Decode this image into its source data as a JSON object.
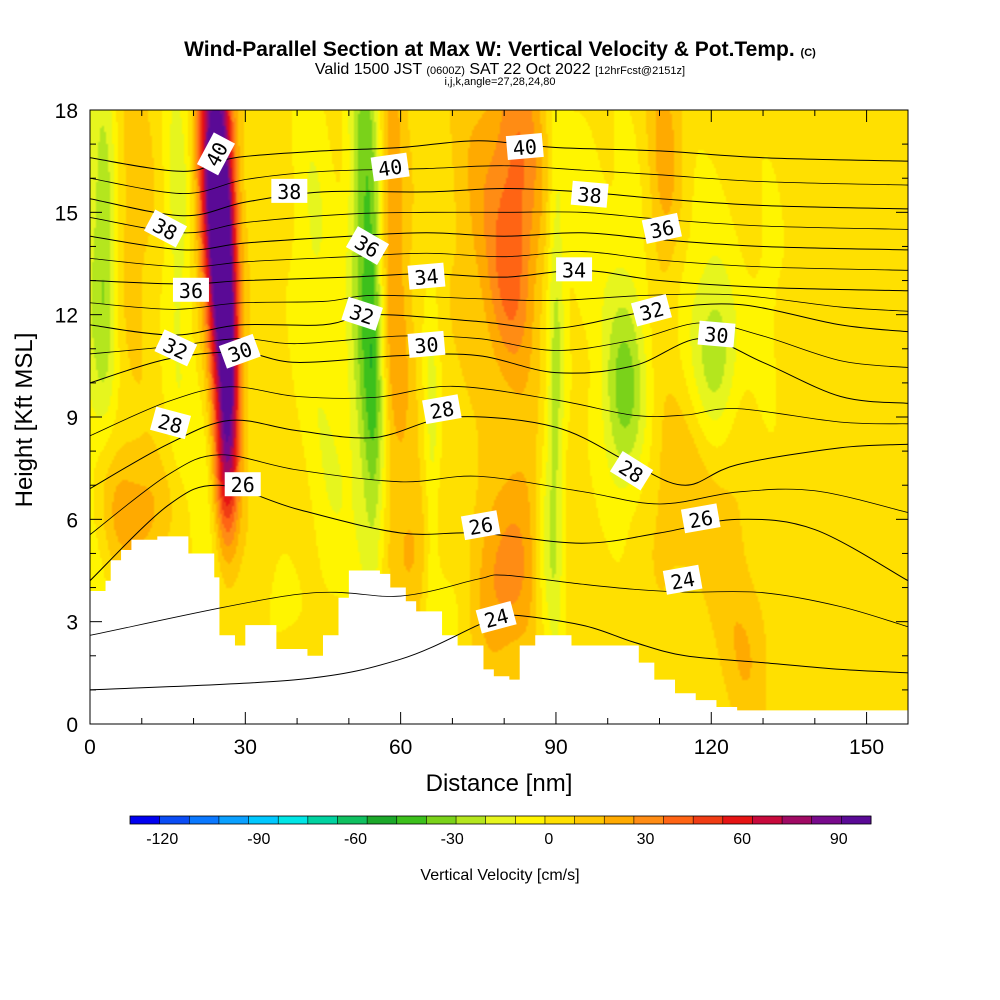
{
  "header": {
    "title": "Wind-Parallel Section at Max W: Vertical Velocity & Pot.Temp.",
    "title_tag": "(C)",
    "valid_a": "Valid 1500 JST",
    "valid_b": "(0600Z)",
    "valid_c": "SAT 22 Oct 2022",
    "valid_d": "[12hrFcst@2151z]",
    "meta": "i,j,k,angle=27,28,24,80"
  },
  "chart_data": {
    "type": "heatmap",
    "xlabel": "Distance [nm]",
    "ylabel": "Height [Kft MSL]",
    "xlim": [
      0,
      158
    ],
    "ylim": [
      0,
      18
    ],
    "x_ticks": [
      0,
      30,
      60,
      90,
      120,
      150
    ],
    "y_ticks": [
      0,
      3,
      6,
      9,
      12,
      15,
      18
    ],
    "colorbar": {
      "label": "Vertical Velocity [cm/s]",
      "ticks": [
        -120,
        -90,
        -60,
        -30,
        0,
        30,
        60,
        90
      ],
      "range": [
        -130,
        100
      ],
      "colors": [
        "#0000f0",
        "#0a4cf5",
        "#0a78ff",
        "#0aa0ff",
        "#00c8ff",
        "#00e6e6",
        "#00d2a0",
        "#10c060",
        "#1ca82a",
        "#3cc01c",
        "#7ad21a",
        "#b4e61e",
        "#e6f51e",
        "#fff500",
        "#ffe000",
        "#ffc800",
        "#ffaa00",
        "#ff8c14",
        "#ff6414",
        "#f03c14",
        "#e61414",
        "#c80a3c",
        "#a00a64",
        "#780a8c",
        "#5a0a96"
      ]
    },
    "terrain_kft": [
      [
        0,
        3.9
      ],
      [
        3,
        4.2
      ],
      [
        4,
        4.8
      ],
      [
        6,
        5.1
      ],
      [
        8,
        5.4
      ],
      [
        13,
        5.5
      ],
      [
        19,
        5.0
      ],
      [
        24,
        4.3
      ],
      [
        25,
        2.6
      ],
      [
        28,
        2.3
      ],
      [
        30,
        2.9
      ],
      [
        36,
        2.2
      ],
      [
        42,
        2.0
      ],
      [
        45,
        2.6
      ],
      [
        48,
        3.7
      ],
      [
        50,
        4.5
      ],
      [
        56,
        4.4
      ],
      [
        58,
        4.0
      ],
      [
        61,
        3.6
      ],
      [
        63,
        3.3
      ],
      [
        68,
        2.6
      ],
      [
        71,
        2.3
      ],
      [
        76,
        1.6
      ],
      [
        78,
        1.4
      ],
      [
        81,
        1.3
      ],
      [
        83,
        2.3
      ],
      [
        86,
        2.6
      ],
      [
        93,
        2.3
      ],
      [
        102,
        2.3
      ],
      [
        106,
        1.8
      ],
      [
        109,
        1.3
      ],
      [
        113,
        0.9
      ],
      [
        117,
        0.7
      ],
      [
        121,
        0.5
      ],
      [
        125,
        0.4
      ],
      [
        150,
        0.4
      ],
      [
        158,
        0.6
      ]
    ],
    "isentropes": [
      {
        "label": "24",
        "points": [
          [
            0,
            1.0
          ],
          [
            40,
            1.3
          ],
          [
            60,
            1.9
          ],
          [
            75,
            2.9
          ],
          [
            80,
            3.2
          ],
          [
            95,
            2.9
          ],
          [
            105,
            2.4
          ],
          [
            115,
            2.0
          ],
          [
            130,
            1.8
          ],
          [
            145,
            1.6
          ],
          [
            158,
            1.5
          ]
        ]
      },
      {
        "label": "26",
        "points": [
          [
            0,
            4.2
          ],
          [
            15,
            6.4
          ],
          [
            25,
            7.0
          ],
          [
            40,
            6.3
          ],
          [
            60,
            5.6
          ],
          [
            75,
            5.6
          ],
          [
            95,
            5.3
          ],
          [
            110,
            5.6
          ],
          [
            125,
            6.0
          ],
          [
            140,
            5.7
          ],
          [
            158,
            4.2
          ]
        ]
      },
      {
        "label": "28",
        "points": [
          [
            0,
            6.9
          ],
          [
            15,
            8.2
          ],
          [
            27,
            8.9
          ],
          [
            40,
            8.6
          ],
          [
            55,
            8.4
          ],
          [
            70,
            9.0
          ],
          [
            90,
            8.7
          ],
          [
            105,
            7.6
          ],
          [
            115,
            7.0
          ],
          [
            125,
            7.6
          ],
          [
            145,
            8.1
          ],
          [
            158,
            8.2
          ]
        ]
      },
      {
        "label": "30",
        "points": [
          [
            0,
            10.0
          ],
          [
            15,
            10.7
          ],
          [
            29,
            10.9
          ],
          [
            40,
            10.6
          ],
          [
            60,
            10.8
          ],
          [
            75,
            10.8
          ],
          [
            90,
            10.3
          ],
          [
            105,
            10.5
          ],
          [
            118,
            11.3
          ],
          [
            130,
            10.6
          ],
          [
            145,
            9.6
          ],
          [
            158,
            9.4
          ]
        ]
      },
      {
        "label": "32",
        "points": [
          [
            0,
            11.7
          ],
          [
            16,
            11.4
          ],
          [
            29,
            11.7
          ],
          [
            45,
            11.7
          ],
          [
            55,
            12.0
          ],
          [
            75,
            11.8
          ],
          [
            90,
            11.6
          ],
          [
            108,
            12.1
          ],
          [
            125,
            12.3
          ],
          [
            145,
            11.7
          ],
          [
            158,
            11.5
          ]
        ]
      },
      {
        "label": "34",
        "points": [
          [
            0,
            13.0
          ],
          [
            18,
            12.9
          ],
          [
            30,
            13.0
          ],
          [
            50,
            13.1
          ],
          [
            65,
            13.2
          ],
          [
            80,
            13.1
          ],
          [
            95,
            13.3
          ],
          [
            110,
            13.0
          ],
          [
            130,
            12.8
          ],
          [
            158,
            12.7
          ]
        ]
      },
      {
        "label": "36",
        "points": [
          [
            0,
            14.3
          ],
          [
            18,
            13.9
          ],
          [
            30,
            14.1
          ],
          [
            50,
            14.3
          ],
          [
            65,
            14.4
          ],
          [
            80,
            14.3
          ],
          [
            95,
            14.4
          ],
          [
            110,
            14.2
          ],
          [
            130,
            14.0
          ],
          [
            158,
            13.9
          ]
        ]
      },
      {
        "label": "38",
        "points": [
          [
            0,
            15.4
          ],
          [
            18,
            14.9
          ],
          [
            30,
            15.3
          ],
          [
            45,
            15.6
          ],
          [
            65,
            15.6
          ],
          [
            80,
            15.7
          ],
          [
            95,
            15.6
          ],
          [
            110,
            15.4
          ],
          [
            130,
            15.2
          ],
          [
            158,
            15.1
          ]
        ]
      },
      {
        "label": "40",
        "points": [
          [
            0,
            16.6
          ],
          [
            18,
            16.2
          ],
          [
            28,
            16.6
          ],
          [
            45,
            16.8
          ],
          [
            60,
            16.9
          ],
          [
            75,
            17.1
          ],
          [
            90,
            16.9
          ],
          [
            110,
            16.8
          ],
          [
            130,
            16.6
          ],
          [
            158,
            16.5
          ]
        ]
      }
    ],
    "contour_labels": [
      {
        "text": "40",
        "x": 24.5,
        "y": 16.7,
        "angle": -62
      },
      {
        "text": "40",
        "x": 58,
        "y": 16.3,
        "angle": -8
      },
      {
        "text": "40",
        "x": 84,
        "y": 16.9,
        "angle": -5
      },
      {
        "text": "38",
        "x": 38.5,
        "y": 15.6,
        "angle": 0
      },
      {
        "text": "38",
        "x": 96.5,
        "y": 15.5,
        "angle": 5
      },
      {
        "text": "38",
        "x": 14.5,
        "y": 14.5,
        "angle": 28
      },
      {
        "text": "36",
        "x": 53.5,
        "y": 14.0,
        "angle": 30
      },
      {
        "text": "36",
        "x": 110.5,
        "y": 14.5,
        "angle": -12
      },
      {
        "text": "36",
        "x": 19.5,
        "y": 12.7,
        "angle": 0
      },
      {
        "text": "34",
        "x": 65,
        "y": 13.1,
        "angle": -5
      },
      {
        "text": "34",
        "x": 93.5,
        "y": 13.3,
        "angle": 0
      },
      {
        "text": "32",
        "x": 52.5,
        "y": 12.0,
        "angle": 18
      },
      {
        "text": "32",
        "x": 108.5,
        "y": 12.1,
        "angle": -15
      },
      {
        "text": "32",
        "x": 16.5,
        "y": 11.0,
        "angle": 25
      },
      {
        "text": "30",
        "x": 29,
        "y": 10.9,
        "angle": -20
      },
      {
        "text": "30",
        "x": 65,
        "y": 11.1,
        "angle": -5
      },
      {
        "text": "30",
        "x": 121,
        "y": 11.4,
        "angle": 5
      },
      {
        "text": "28",
        "x": 68,
        "y": 9.2,
        "angle": -10
      },
      {
        "text": "28",
        "x": 15.5,
        "y": 8.8,
        "angle": 15
      },
      {
        "text": "28",
        "x": 104.5,
        "y": 7.4,
        "angle": 32
      },
      {
        "text": "26",
        "x": 29.5,
        "y": 7.0,
        "angle": 0
      },
      {
        "text": "26",
        "x": 75.5,
        "y": 5.8,
        "angle": -10
      },
      {
        "text": "26",
        "x": 118,
        "y": 6.0,
        "angle": -10
      },
      {
        "text": "24",
        "x": 78.5,
        "y": 3.1,
        "angle": -15
      },
      {
        "text": "24",
        "x": 114.5,
        "y": 4.2,
        "angle": -10
      }
    ],
    "w_features": [
      {
        "x": 0,
        "y": 10,
        "sx": 3,
        "sy": 10,
        "w": -15
      },
      {
        "x": 3,
        "y": 14,
        "sx": 1.8,
        "sy": 3.5,
        "w": -30
      },
      {
        "x": 7,
        "y": 15,
        "sx": 4,
        "sy": 3,
        "w": 10
      },
      {
        "x": 17,
        "y": 16,
        "sx": 2,
        "sy": 3,
        "w": -15
      },
      {
        "x": 17,
        "y": 10,
        "sx": 2.5,
        "sy": 5,
        "w": -10
      },
      {
        "x": 23,
        "y": 7,
        "sx": 2.5,
        "sy": 5,
        "w": -15
      },
      {
        "x": 3,
        "y": 7,
        "sx": 3,
        "sy": 1.8,
        "w": 10
      },
      {
        "x": 10,
        "y": 6.2,
        "sx": 5,
        "sy": 1.2,
        "w": 18
      },
      {
        "x": 24,
        "y": 16.5,
        "sx": 2.2,
        "sy": 3,
        "w": 90
      },
      {
        "x": 25.5,
        "y": 13,
        "sx": 1.8,
        "sy": 3,
        "w": 80
      },
      {
        "x": 27,
        "y": 10,
        "sx": 1.5,
        "sy": 2.5,
        "w": 55
      },
      {
        "x": 26,
        "y": 7.2,
        "sx": 1.8,
        "sy": 1.8,
        "w": 35
      },
      {
        "x": 43,
        "y": 14,
        "sx": 3,
        "sy": 4,
        "w": -15
      },
      {
        "x": 53,
        "y": 15,
        "sx": 2.2,
        "sy": 6,
        "w": -38
      },
      {
        "x": 55,
        "y": 10,
        "sx": 1.5,
        "sy": 4,
        "w": -30
      },
      {
        "x": 47,
        "y": 7,
        "sx": 3,
        "sy": 3,
        "w": -12
      },
      {
        "x": 58,
        "y": 15,
        "sx": 1.8,
        "sy": 4,
        "w": 22
      },
      {
        "x": 60,
        "y": 10,
        "sx": 2,
        "sy": 3,
        "w": 12
      },
      {
        "x": 66,
        "y": 8,
        "sx": 1.2,
        "sy": 4,
        "w": -18
      },
      {
        "x": 63,
        "y": 5,
        "sx": 3,
        "sy": 1.5,
        "w": 15
      },
      {
        "x": 76,
        "y": 15.5,
        "sx": 4,
        "sy": 3,
        "w": 15
      },
      {
        "x": 83,
        "y": 16.5,
        "sx": 3.5,
        "sy": 3,
        "w": 28
      },
      {
        "x": 81,
        "y": 12.5,
        "sx": 3,
        "sy": 2,
        "w": 20
      },
      {
        "x": 78,
        "y": 4,
        "sx": 4,
        "sy": 1.8,
        "w": 25
      },
      {
        "x": 84,
        "y": 6,
        "sx": 3,
        "sy": 2.5,
        "w": 15
      },
      {
        "x": 90,
        "y": 10,
        "sx": 1.2,
        "sy": 6,
        "w": -25
      },
      {
        "x": 88,
        "y": 5.5,
        "sx": 1.5,
        "sy": 2.5,
        "w": -18
      },
      {
        "x": 95,
        "y": 15,
        "sx": 3,
        "sy": 3,
        "w": -10
      },
      {
        "x": 103,
        "y": 9.5,
        "sx": 3,
        "sy": 2,
        "w": -28
      },
      {
        "x": 104,
        "y": 12,
        "sx": 4,
        "sy": 4,
        "w": -12
      },
      {
        "x": 111,
        "y": 16,
        "sx": 2.5,
        "sy": 3,
        "w": 20
      },
      {
        "x": 114,
        "y": 7,
        "sx": 5,
        "sy": 2,
        "w": 12
      },
      {
        "x": 121,
        "y": 10.6,
        "sx": 3,
        "sy": 1.6,
        "w": -25
      },
      {
        "x": 118,
        "y": 13,
        "sx": 5,
        "sy": 2.5,
        "w": -12
      },
      {
        "x": 131,
        "y": 12.5,
        "sx": 2.5,
        "sy": 3,
        "w": -8
      },
      {
        "x": 127,
        "y": 2,
        "sx": 3,
        "sy": 1.5,
        "w": 12
      },
      {
        "x": 123,
        "y": 5,
        "sx": 3,
        "sy": 2,
        "w": 8
      },
      {
        "x": 36,
        "y": 3.3,
        "sx": 3,
        "sy": 1.3,
        "w": -8
      },
      {
        "x": 71,
        "y": 3.5,
        "sx": 4,
        "sy": 1.5,
        "w": -12
      }
    ]
  }
}
